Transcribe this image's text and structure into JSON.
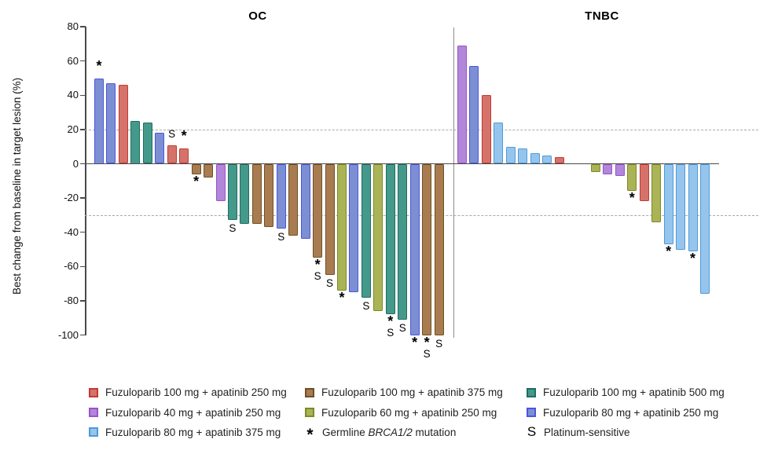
{
  "chart_data": {
    "type": "bar",
    "title": "",
    "ylabel": "Best change from baseline in target lesion (%)",
    "ylim": [
      -100,
      80
    ],
    "yticks": [
      80,
      60,
      40,
      20,
      0,
      -20,
      -40,
      -60,
      -80,
      -100
    ],
    "reference_lines": [
      20,
      -30
    ],
    "grid": "off",
    "legend_position": "bottom",
    "groups": {
      "red": {
        "label": "Fuzuloparib 100 mg + apatinib 250 mg",
        "fill": "#d5736b",
        "stroke": "#c23a31"
      },
      "purple": {
        "label": "Fuzuloparib 40 mg + apatinib 250 mg",
        "fill": "#b286d8",
        "stroke": "#9a52cc"
      },
      "sky": {
        "label": "Fuzuloparib 80 mg + apatinib 375 mg",
        "fill": "#95c5ed",
        "stroke": "#4e9ad8"
      },
      "brown": {
        "label": "Fuzuloparib 100 mg + apatinib 375 mg",
        "fill": "#a87c50",
        "stroke": "#6e5026"
      },
      "olive": {
        "label": "Fuzuloparib 60 mg + apatinib 250 mg",
        "fill": "#aab457",
        "stroke": "#7c8a25"
      },
      "teal": {
        "label": "Fuzuloparib 100 mg + apatinib 500 mg",
        "fill": "#45998b",
        "stroke": "#1d6e61"
      },
      "indigo": {
        "label": "Fuzuloparib 80 mg + apatinib 250 mg",
        "fill": "#7c8fd3",
        "stroke": "#4b55de"
      }
    },
    "flags": {
      "star_symbol": "*",
      "star_label_prefix": "Germline ",
      "star_label_italic": "BRCA1/2",
      "star_label_suffix": " mutation",
      "s_symbol": "S",
      "s_label": "Platinum-sensitive"
    },
    "panels": [
      {
        "title": "OC",
        "bars": [
          {
            "v": 50,
            "g": "indigo",
            "f": "*"
          },
          {
            "v": 47,
            "g": "indigo"
          },
          {
            "v": 46,
            "g": "red"
          },
          {
            "v": 25,
            "g": "teal"
          },
          {
            "v": 24,
            "g": "teal"
          },
          {
            "v": 18,
            "g": "indigo"
          },
          {
            "v": 11,
            "g": "red",
            "f": "S"
          },
          {
            "v": 9,
            "g": "red",
            "f": "*"
          },
          {
            "v": -6,
            "g": "brown",
            "f": "*"
          },
          {
            "v": -8,
            "g": "brown"
          },
          {
            "v": -22,
            "g": "purple"
          },
          {
            "v": -33,
            "g": "teal",
            "f": "S"
          },
          {
            "v": -35,
            "g": "teal"
          },
          {
            "v": -35,
            "g": "brown"
          },
          {
            "v": -37,
            "g": "brown"
          },
          {
            "v": -38,
            "g": "indigo",
            "f": "S"
          },
          {
            "v": -42,
            "g": "brown"
          },
          {
            "v": -44,
            "g": "indigo"
          },
          {
            "v": -55,
            "g": "brown",
            "f": "*S"
          },
          {
            "v": -65,
            "g": "brown",
            "f": "S"
          },
          {
            "v": -74,
            "g": "olive",
            "f": "*"
          },
          {
            "v": -75,
            "g": "indigo"
          },
          {
            "v": -78,
            "g": "teal",
            "f": "S"
          },
          {
            "v": -86,
            "g": "olive"
          },
          {
            "v": -88,
            "g": "teal",
            "f": "*S"
          },
          {
            "v": -91,
            "g": "teal",
            "f": "S"
          },
          {
            "v": -100,
            "g": "indigo",
            "f": "*"
          },
          {
            "v": -100,
            "g": "brown",
            "f": "*S"
          },
          {
            "v": -100,
            "g": "brown",
            "f": "S"
          }
        ]
      },
      {
        "title": "TNBC",
        "bars": [
          {
            "v": 69,
            "g": "purple"
          },
          {
            "v": 57,
            "g": "indigo"
          },
          {
            "v": 40,
            "g": "red"
          },
          {
            "v": 24,
            "g": "sky"
          },
          {
            "v": 10,
            "g": "sky"
          },
          {
            "v": 9,
            "g": "sky"
          },
          {
            "v": 6,
            "g": "sky"
          },
          {
            "v": 5,
            "g": "sky"
          },
          {
            "v": 4,
            "g": "red"
          },
          {
            "v": 0,
            "g": null
          },
          {
            "v": 0,
            "g": null
          },
          {
            "v": -5,
            "g": "olive"
          },
          {
            "v": -6,
            "g": "purple"
          },
          {
            "v": -7,
            "g": "purple"
          },
          {
            "v": -16,
            "g": "olive",
            "f": "*"
          },
          {
            "v": -22,
            "g": "red"
          },
          {
            "v": -34,
            "g": "olive"
          },
          {
            "v": -47,
            "g": "sky",
            "f": "*"
          },
          {
            "v": -50,
            "g": "sky"
          },
          {
            "v": -51,
            "g": "sky",
            "f": "*"
          },
          {
            "v": -76,
            "g": "sky"
          }
        ]
      }
    ],
    "legend_columns": [
      [
        "red",
        "purple",
        "sky"
      ],
      [
        "brown",
        "olive",
        "*"
      ],
      [
        "teal",
        "indigo",
        "S"
      ]
    ]
  }
}
